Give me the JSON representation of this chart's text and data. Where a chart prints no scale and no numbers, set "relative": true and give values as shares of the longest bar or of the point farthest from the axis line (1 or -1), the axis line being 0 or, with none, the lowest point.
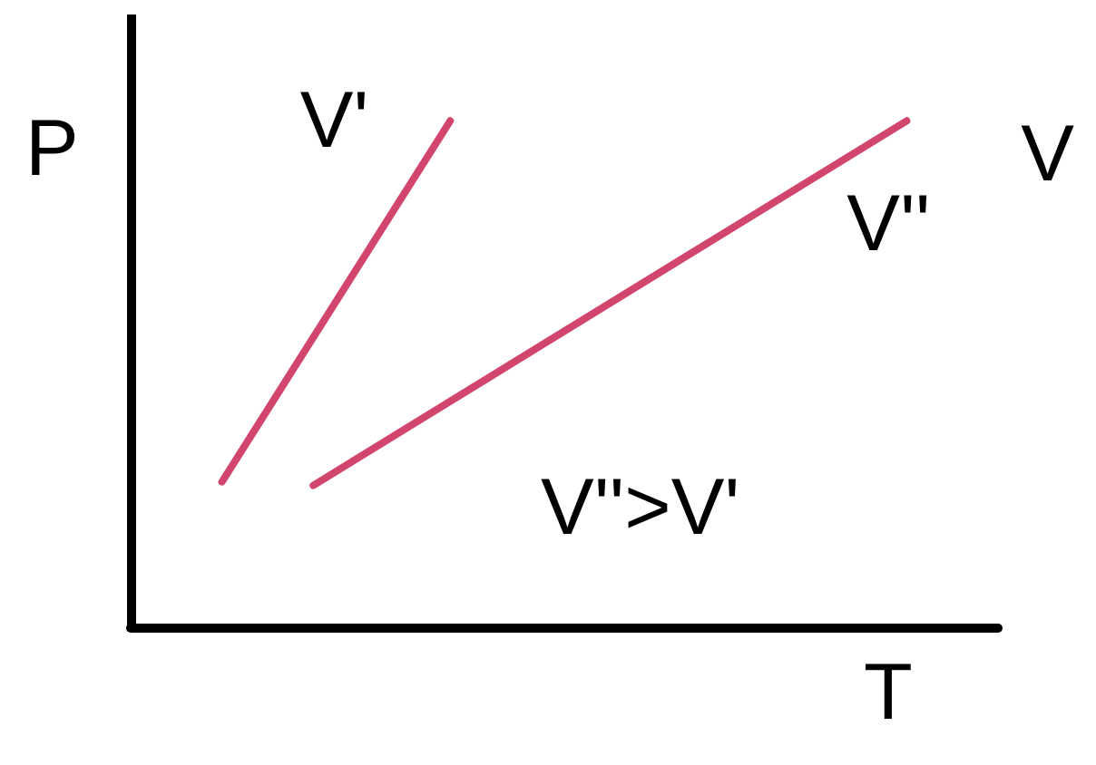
{
  "chart_data": {
    "type": "line",
    "relative": true,
    "xlabel": "T",
    "ylabel": "P",
    "categories": [
      null,
      null,
      null,
      null,
      null,
      null,
      null,
      null,
      null,
      null,
      null,
      null,
      null,
      null,
      null,
      null,
      null,
      null,
      null,
      null
    ],
    "series": [
      {
        "name": "V'",
        "color": "#d2466e",
        "values": [
          null,
          null,
          0.287,
          null,
          null,
          null,
          null,
          1,
          null,
          null,
          null,
          null,
          null,
          null,
          null,
          null,
          null,
          null,
          null,
          null
        ]
      },
      {
        "name": "V''",
        "color": "#d2466e",
        "values": [
          null,
          null,
          null,
          null,
          0.28,
          null,
          null,
          null,
          null,
          null,
          null,
          null,
          null,
          null,
          null,
          null,
          null,
          1,
          null,
          null
        ]
      }
    ],
    "annotations": [
      "V''>V'",
      "V"
    ],
    "marker": "none",
    "line_style": "solid"
  }
}
